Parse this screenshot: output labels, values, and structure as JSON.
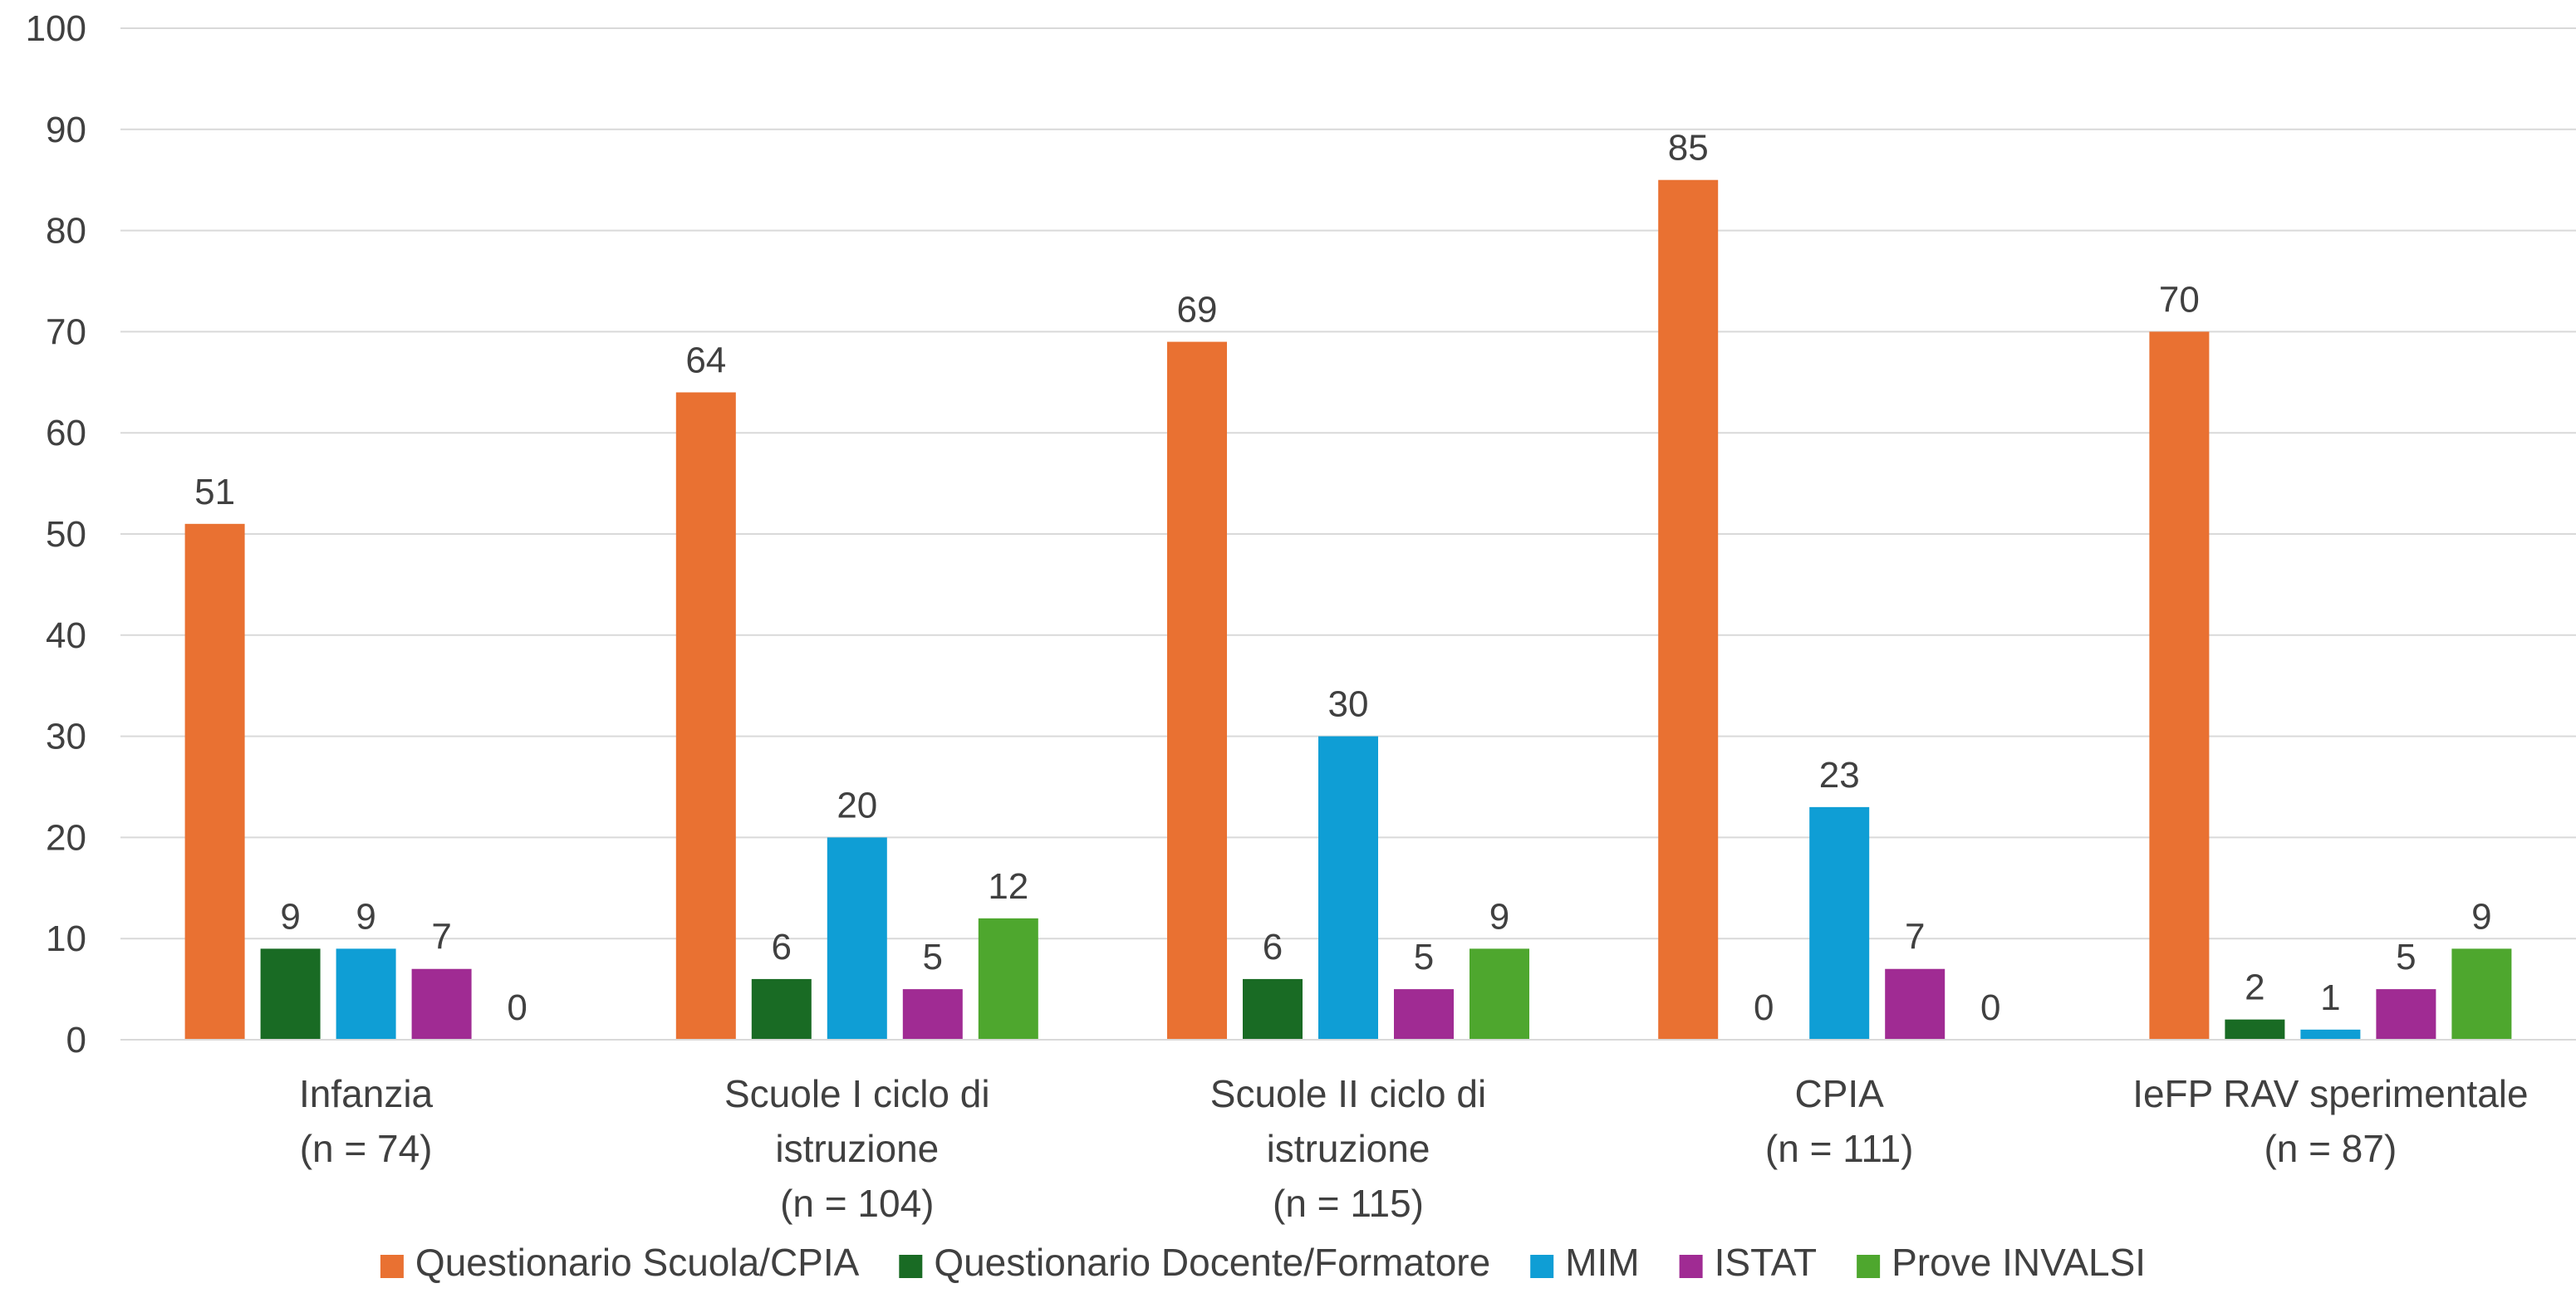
{
  "chart_data": {
    "type": "bar",
    "categories": [
      [
        "Infanzia",
        "(n = 74)"
      ],
      [
        "Scuole I ciclo di",
        "istruzione",
        "(n = 104)"
      ],
      [
        "Scuole II ciclo di",
        "istruzione",
        "(n = 115)"
      ],
      [
        "CPIA",
        "(n = 111)"
      ],
      [
        "IeFP RAV sperimentale",
        "(n = 87)"
      ]
    ],
    "series": [
      {
        "name": "Questionario Scuola/CPIA",
        "color": "#E97132",
        "values": [
          51,
          64,
          69,
          85,
          70
        ]
      },
      {
        "name": "Questionario Docente/Formatore",
        "color": "#196B24",
        "values": [
          9,
          6,
          6,
          0,
          2
        ]
      },
      {
        "name": "MIM",
        "color": "#0F9ED5",
        "values": [
          9,
          20,
          30,
          23,
          1
        ]
      },
      {
        "name": "ISTAT",
        "color": "#A02B93",
        "values": [
          7,
          5,
          5,
          7,
          5
        ]
      },
      {
        "name": "Prove INVALSI",
        "color": "#4EA72E",
        "values": [
          0,
          12,
          9,
          0,
          9
        ]
      }
    ],
    "yticks": [
      "0",
      "10",
      "20",
      "30",
      "40",
      "50",
      "60",
      "70",
      "80",
      "90",
      "100"
    ],
    "ylim": [
      0,
      100
    ],
    "grid": true,
    "legend_position": "bottom",
    "data_labels": true
  }
}
